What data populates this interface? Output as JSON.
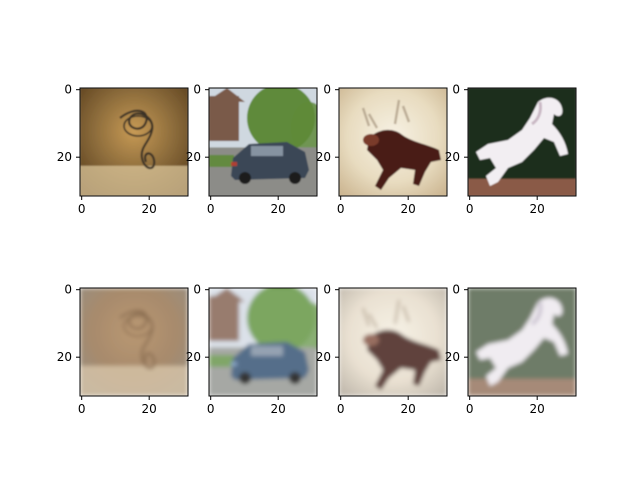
{
  "figure": {
    "rows": 2,
    "cols": 4,
    "panels": [
      {
        "id": "original-1",
        "subject": "rope-coil",
        "blurred": false,
        "palette": {
          "bg": "#8a6a3a",
          "bg_edge": "#5a3f1d",
          "bg_light": "#d9c49a",
          "fg": "#3b3228",
          "accent": "#c79a55"
        }
      },
      {
        "id": "original-2",
        "subject": "car",
        "blurred": false,
        "palette": {
          "sky": "#cfd8e0",
          "tree": "#5f8a3a",
          "house": "#7a5a4a",
          "road": "#8c8c88",
          "car": "#3a4656",
          "accent": "#b04030"
        }
      },
      {
        "id": "original-3",
        "subject": "deer",
        "blurred": false,
        "palette": {
          "bg": "#e8dcc0",
          "bg_edge": "#cdb793",
          "fg": "#4a1e16",
          "accent": "#7a3a2a"
        }
      },
      {
        "id": "original-4",
        "subject": "horse",
        "blurred": false,
        "palette": {
          "bg": "#1f2f1e",
          "ground": "#8a5a46",
          "fg": "#f2eef2",
          "accent": "#c9b8c4"
        }
      },
      {
        "id": "reconstruction-1",
        "subject": "rope-coil",
        "blurred": true,
        "palette": {
          "bg": "#9c7b58",
          "bg_edge": "#8a8070",
          "bg_light": "#d6c2a2",
          "fg": "#7c5a3a",
          "accent": "#b08a60"
        }
      },
      {
        "id": "reconstruction-2",
        "subject": "car",
        "blurred": true,
        "palette": {
          "sky": "#d6dde6",
          "tree": "#6a9a4a",
          "house": "#8a6a5a",
          "road": "#9a9c98",
          "car": "#3e5a7a",
          "accent": "#7a9ac0"
        }
      },
      {
        "id": "reconstruction-3",
        "subject": "deer",
        "blurred": true,
        "palette": {
          "bg": "#e6dccb",
          "bg_edge": "#b9b0a2",
          "fg": "#4a2a22",
          "accent": "#8a5a4a"
        }
      },
      {
        "id": "reconstruction-4",
        "subject": "horse",
        "blurred": true,
        "palette": {
          "bg": "#5a6a52",
          "ground": "#9a7a66",
          "fg": "#eeeaf0",
          "accent": "#b9b0c2"
        }
      }
    ],
    "y_ticks": [
      "0",
      "20"
    ],
    "x_ticks": [
      "0",
      "20"
    ]
  }
}
